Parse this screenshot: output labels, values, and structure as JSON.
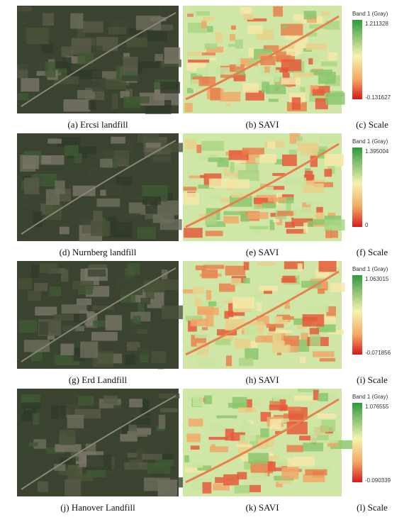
{
  "figure": {
    "rows": [
      {
        "captions": [
          "(a) Ercsi landfill",
          "(b) SAVI",
          "(c) Scale"
        ],
        "scale": {
          "title": "Band 1 (Gray)",
          "max": "1.211328",
          "min": "-0.131627"
        }
      },
      {
        "captions": [
          "(d) Nurnberg landfill",
          "(e) SAVI",
          "(f) Scale"
        ],
        "scale": {
          "title": "Band 1 (Gray)",
          "max": "1.395004",
          "min": "0"
        }
      },
      {
        "captions": [
          "(g) Erd Landfill",
          "(h) SAVI",
          "(i) Scale"
        ],
        "scale": {
          "title": "Band 1 (Gray)",
          "max": "1.063015",
          "min": "-0.071856"
        }
      },
      {
        "captions": [
          "(j) Hanover Landfill",
          "(k) SAVI",
          "(l) Scale"
        ],
        "scale": {
          "title": "Band 1 (Gray)",
          "max": "1.076555",
          "min": "-0.090339"
        }
      }
    ]
  }
}
